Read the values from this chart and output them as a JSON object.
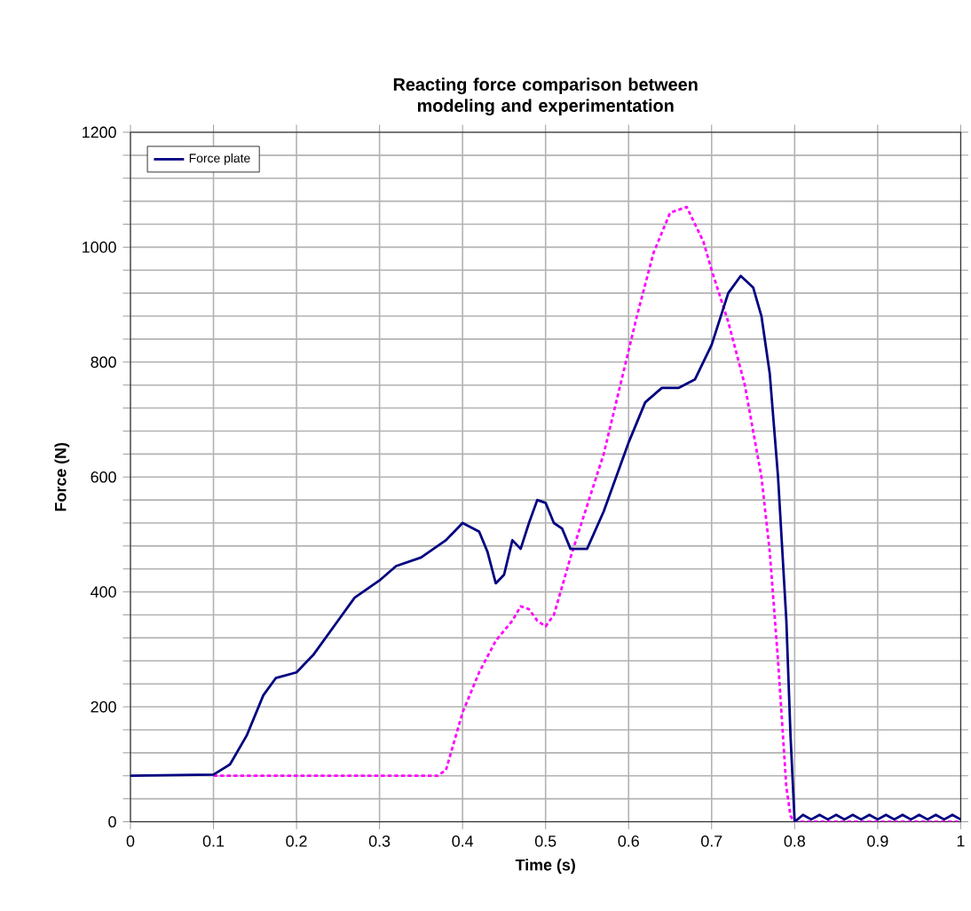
{
  "chart_data": {
    "type": "line",
    "title": "Reacting force comparison between modeling and experimentation",
    "xlabel": "Time (s)",
    "ylabel": "Force (N)",
    "xlim": [
      0,
      1
    ],
    "ylim": [
      0,
      1200
    ],
    "xticks": [
      0,
      0.1,
      0.2,
      0.3,
      0.4,
      0.5,
      0.6,
      0.7,
      0.8,
      0.9,
      1
    ],
    "yticks": [
      0,
      {
        "value": 40,
        "label": null
      },
      {
        "value": 80,
        "label": null
      },
      {
        "value": 120,
        "label": null
      },
      {
        "value": 160,
        "label": null
      },
      200,
      {
        "value": 240,
        "label": null
      },
      {
        "value": 280,
        "label": null
      },
      {
        "value": 320,
        "label": null
      },
      {
        "value": 360,
        "label": null
      },
      400,
      {
        "value": 440,
        "label": null
      },
      {
        "value": 480,
        "label": null
      },
      {
        "value": 520,
        "label": null
      },
      {
        "value": 560,
        "label": null
      },
      600,
      {
        "value": 640,
        "label": null
      },
      {
        "value": 680,
        "label": null
      },
      {
        "value": 720,
        "label": null
      },
      {
        "value": 760,
        "label": null
      },
      800,
      {
        "value": 840,
        "label": null
      },
      {
        "value": 880,
        "label": null
      },
      {
        "value": 920,
        "label": null
      },
      {
        "value": 960,
        "label": null
      },
      1000,
      {
        "value": 1040,
        "label": null
      },
      {
        "value": 1080,
        "label": null
      },
      {
        "value": 1120,
        "label": null
      },
      {
        "value": 1160,
        "label": null
      },
      1200
    ],
    "grid": true,
    "legend": "top left",
    "marker": "none",
    "series": [
      {
        "color": "#ff00ff",
        "line_style": "dashed",
        "x": [
          0.1,
          0.2,
          0.3,
          0.37,
          0.38,
          0.4,
          0.42,
          0.44,
          0.46,
          0.47,
          0.48,
          0.49,
          0.5,
          0.51,
          0.53,
          0.55,
          0.57,
          0.59,
          0.61,
          0.63,
          0.65,
          0.67,
          0.69,
          0.7,
          0.72,
          0.74,
          0.76,
          0.77,
          0.78,
          0.79,
          0.795,
          0.8,
          0.9,
          1
        ],
        "values": [
          80,
          80,
          80,
          80,
          90,
          190,
          260,
          315,
          350,
          375,
          370,
          350,
          340,
          360,
          460,
          550,
          640,
          760,
          880,
          990,
          1060,
          1070,
          1010,
          960,
          870,
          760,
          600,
          470,
          280,
          60,
          10,
          0,
          0,
          0
        ]
      },
      {
        "name": "Force plate",
        "color": "#000080",
        "line_style": "solid",
        "x": [
          0,
          0.1,
          0.12,
          0.14,
          0.16,
          0.175,
          0.2,
          0.22,
          0.25,
          0.27,
          0.3,
          0.32,
          0.35,
          0.38,
          0.4,
          0.42,
          0.43,
          0.44,
          0.45,
          0.46,
          0.47,
          0.48,
          0.49,
          0.5,
          0.51,
          0.52,
          0.53,
          0.55,
          0.57,
          0.58,
          0.6,
          0.62,
          0.64,
          0.66,
          0.68,
          0.7,
          0.72,
          0.735,
          0.75,
          0.76,
          0.77,
          0.78,
          0.79,
          0.795,
          0.8,
          0.81,
          0.82,
          0.83,
          0.84,
          0.85,
          0.86,
          0.87,
          0.88,
          0.89,
          0.9,
          0.91,
          0.92,
          0.93,
          0.94,
          0.95,
          0.96,
          0.97,
          0.98,
          0.99,
          1
        ],
        "values": [
          80,
          82,
          100,
          150,
          220,
          250,
          260,
          290,
          350,
          390,
          420,
          445,
          460,
          490,
          520,
          505,
          470,
          415,
          430,
          490,
          475,
          520,
          560,
          555,
          520,
          510,
          475,
          475,
          540,
          580,
          660,
          730,
          755,
          755,
          770,
          830,
          920,
          950,
          930,
          880,
          780,
          600,
          350,
          150,
          0,
          12,
          4,
          12,
          4,
          12,
          4,
          12,
          4,
          12,
          4,
          12,
          4,
          12,
          4,
          12,
          4,
          12,
          4,
          12,
          4
        ]
      }
    ]
  }
}
